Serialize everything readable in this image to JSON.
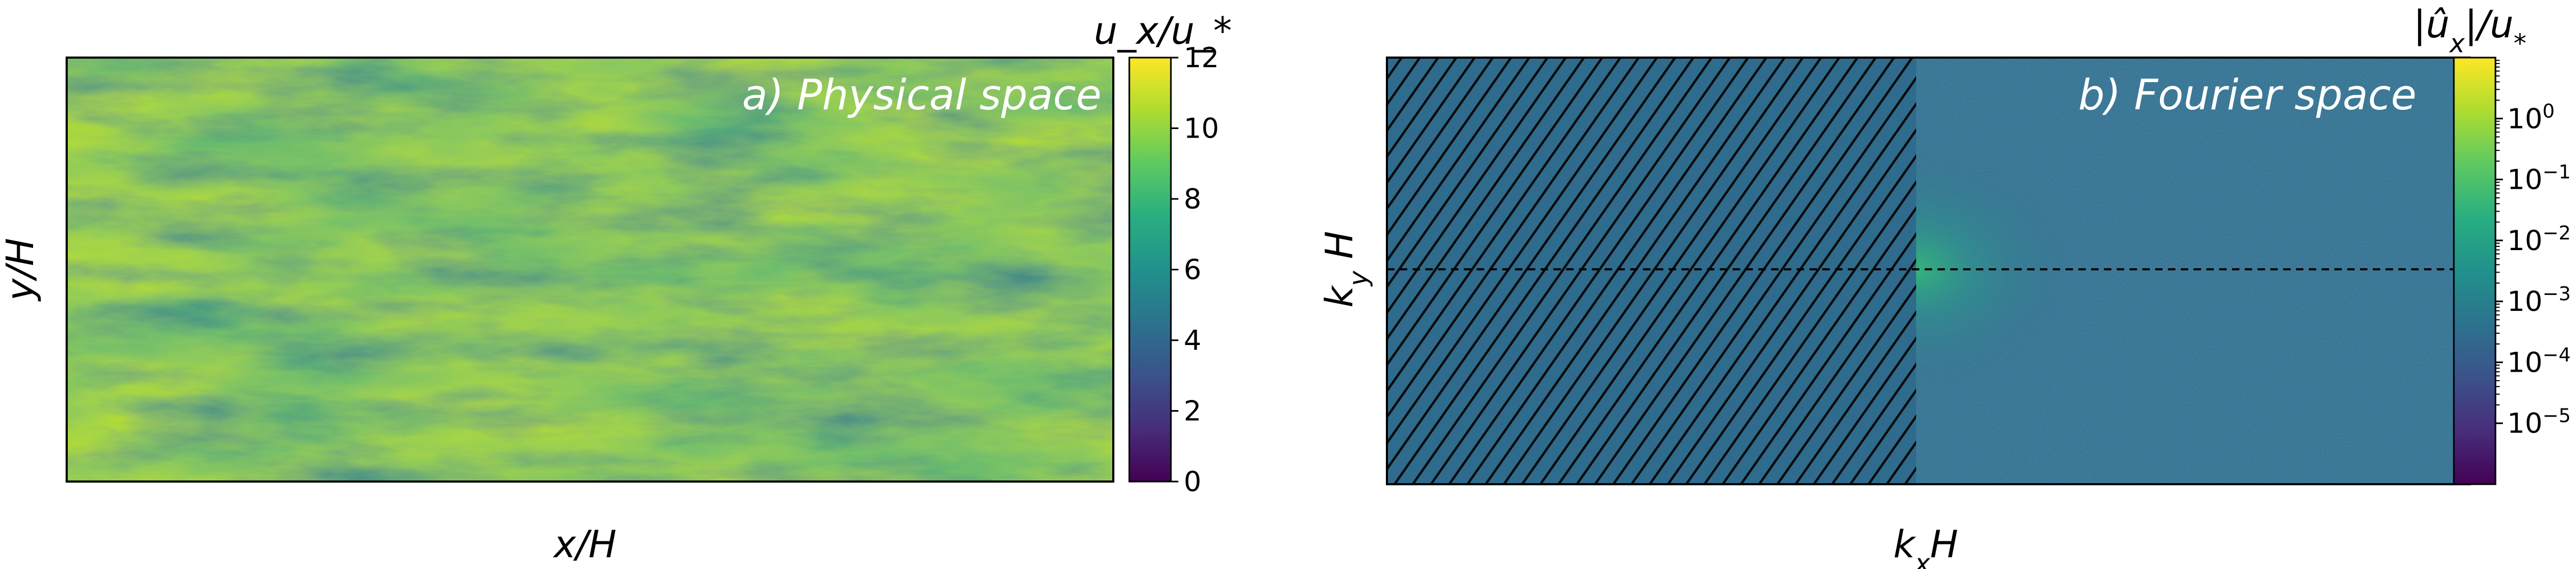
{
  "chart_data": [
    {
      "type": "heatmap",
      "title": "a) Physical space",
      "xlabel": "x/H",
      "ylabel": "y/H",
      "colorbar": {
        "label": "u_x/u_*",
        "scale": "linear",
        "range": [
          0,
          12
        ],
        "ticks": [
          "0",
          "2",
          "4",
          "6",
          "8",
          "10",
          "12"
        ]
      },
      "colormap": "viridis",
      "grid": false
    },
    {
      "type": "heatmap",
      "title": "b) Fourier space",
      "xlabel": "k_x H",
      "ylabel": "k_y H",
      "colorbar": {
        "label": "|û_x|/u_*",
        "scale": "log",
        "range": [
          1e-06,
          10
        ],
        "ticks": [
          {
            "base": "10",
            "exp": "0"
          },
          {
            "base": "10",
            "exp": "−1"
          },
          {
            "base": "10",
            "exp": "−2"
          },
          {
            "base": "10",
            "exp": "−3"
          },
          {
            "base": "10",
            "exp": "−4"
          },
          {
            "base": "10",
            "exp": "−5"
          }
        ]
      },
      "colormap": "viridis",
      "hatched_region": "left half",
      "dashed_line": "k_y H = 0",
      "grid": false
    }
  ]
}
